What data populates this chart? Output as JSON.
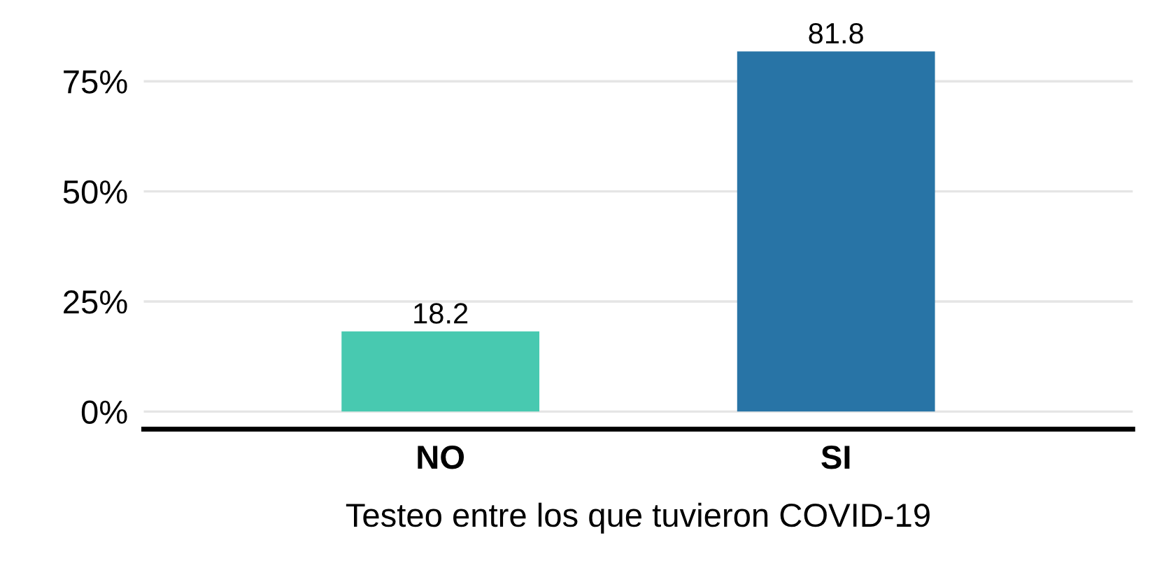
{
  "chart_data": {
    "type": "bar",
    "xlabel": "Testeo entre los que tuvieron COVID-19",
    "categories": [
      "NO",
      "SI"
    ],
    "values": [
      18.2,
      81.8
    ],
    "colors": [
      "#48c9b0",
      "#2874a6"
    ],
    "ylim": [
      -4,
      82
    ],
    "yticks": [
      {
        "value": 0,
        "label": "0%"
      },
      {
        "value": 25,
        "label": "25%"
      },
      {
        "value": 50,
        "label": "50%"
      },
      {
        "value": 75,
        "label": "75%"
      }
    ],
    "grid": "y",
    "data_labels": true
  }
}
